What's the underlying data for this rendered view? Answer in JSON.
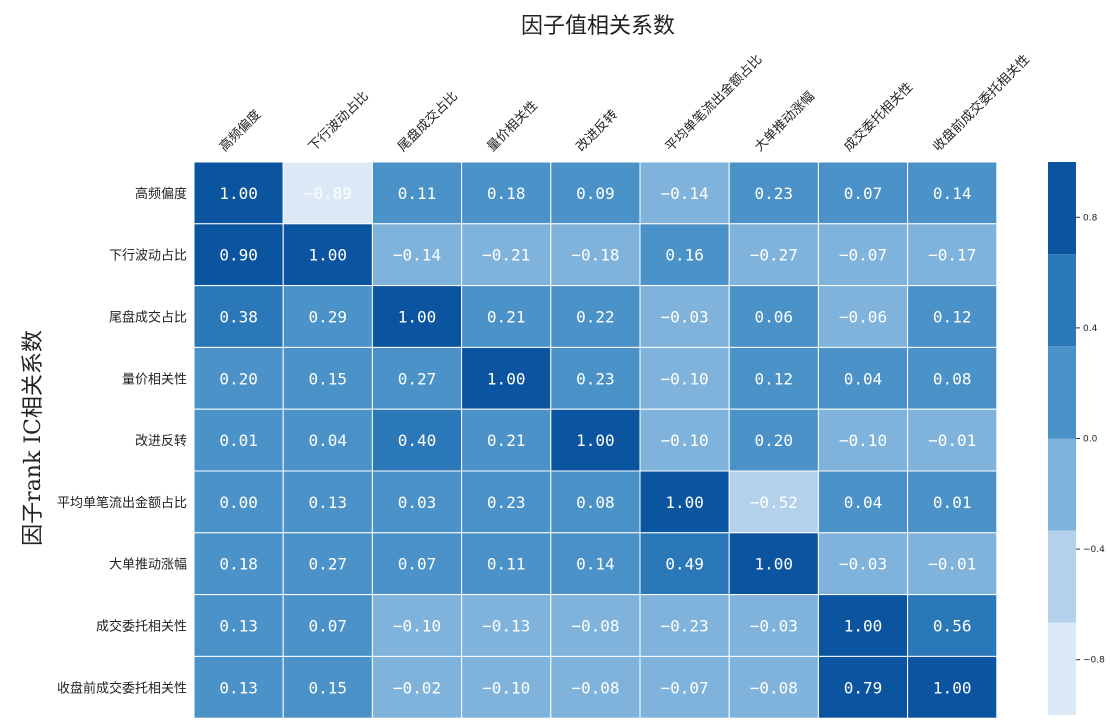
{
  "chart_data": {
    "type": "heatmap",
    "title": "因子值相关系数",
    "ylabel": "因子rank IC相关系数",
    "xlabel": "",
    "columns": [
      "高频偏度",
      "下行波动占比",
      "尾盘成交占比",
      "量价相关性",
      "改进反转",
      "平均单笔流出金额占比",
      "大单推动涨幅",
      "成交委托相关性",
      "收盘前成交委托相关性"
    ],
    "rows": [
      "高频偏度",
      "下行波动占比",
      "尾盘成交占比",
      "量价相关性",
      "改进反转",
      "平均单笔流出金额占比",
      "大单推动涨幅",
      "成交委托相关性",
      "收盘前成交委托相关性"
    ],
    "values": [
      [
        "1.00",
        "-0.89",
        "0.11",
        "0.18",
        "0.09",
        "-0.14",
        "0.23",
        "0.07",
        "0.14"
      ],
      [
        "0.90",
        "1.00",
        "-0.14",
        "-0.21",
        "-0.18",
        "0.16",
        "-0.27",
        "-0.07",
        "-0.17"
      ],
      [
        "0.38",
        "0.29",
        "1.00",
        "0.21",
        "0.22",
        "-0.03",
        "0.06",
        "-0.06",
        "0.12"
      ],
      [
        "0.20",
        "0.15",
        "0.27",
        "1.00",
        "0.23",
        "-0.10",
        "0.12",
        "0.04",
        "0.08"
      ],
      [
        "0.01",
        "0.04",
        "0.40",
        "0.21",
        "1.00",
        "-0.10",
        "0.20",
        "-0.10",
        "-0.01"
      ],
      [
        "0.00",
        "0.13",
        "0.03",
        "0.23",
        "0.08",
        "1.00",
        "-0.52",
        "0.04",
        "0.01"
      ],
      [
        "0.18",
        "0.27",
        "0.07",
        "0.11",
        "0.14",
        "0.49",
        "1.00",
        "-0.03",
        "-0.01"
      ],
      [
        "0.13",
        "0.07",
        "-0.10",
        "-0.13",
        "-0.08",
        "-0.23",
        "-0.03",
        "1.00",
        "0.56"
      ],
      [
        "0.13",
        "0.15",
        "-0.02",
        "-0.10",
        "-0.08",
        "-0.07",
        "-0.08",
        "0.79",
        "1.00"
      ]
    ],
    "colorbar": {
      "ticks": [
        "0.8",
        "0.4",
        "0.0",
        "-0.4",
        "-0.8"
      ],
      "range": [
        -1,
        1
      ],
      "levels": 6,
      "palette": [
        "#dce9f6",
        "#b3d1ea",
        "#7fb3db",
        "#4a92c8",
        "#2b78b8",
        "#0b55a0"
      ]
    },
    "grid": true,
    "legend": "right"
  }
}
